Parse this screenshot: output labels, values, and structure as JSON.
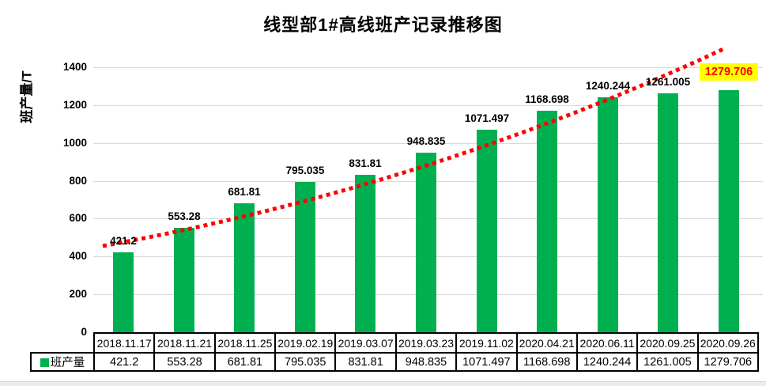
{
  "chart": {
    "title": "线型部1#高线班产记录推移图",
    "y_axis_title": "班产量/T",
    "legend_label": "班产量"
  },
  "chart_data": {
    "type": "bar",
    "title": "线型部1#高线班产记录推移图",
    "xlabel": "",
    "ylabel": "班产量/T",
    "categories": [
      "2018.11.17",
      "2018.11.21",
      "2018.11.25",
      "2019.02.19",
      "2019.03.07",
      "2019.03.23",
      "2019.11.02",
      "2020.04.21",
      "2020.06.11",
      "2020.09.25",
      "2020.09.26"
    ],
    "series": [
      {
        "name": "班产量",
        "values": [
          421.2,
          553.28,
          681.81,
          795.035,
          831.81,
          948.835,
          1071.497,
          1168.698,
          1240.244,
          1261.005,
          1279.706
        ]
      }
    ],
    "ylim": [
      0,
      1400
    ],
    "yticks": [
      0,
      200,
      400,
      600,
      800,
      1000,
      1200,
      1400
    ],
    "grid": true,
    "bar_color": "#00B050",
    "trendline": {
      "style": "dotted",
      "color": "#FF0000"
    },
    "last_label_highlight": {
      "background": "#FFFF00",
      "text_color": "#FF0000"
    },
    "legend_position": "table-left",
    "data_table_shown": true
  }
}
